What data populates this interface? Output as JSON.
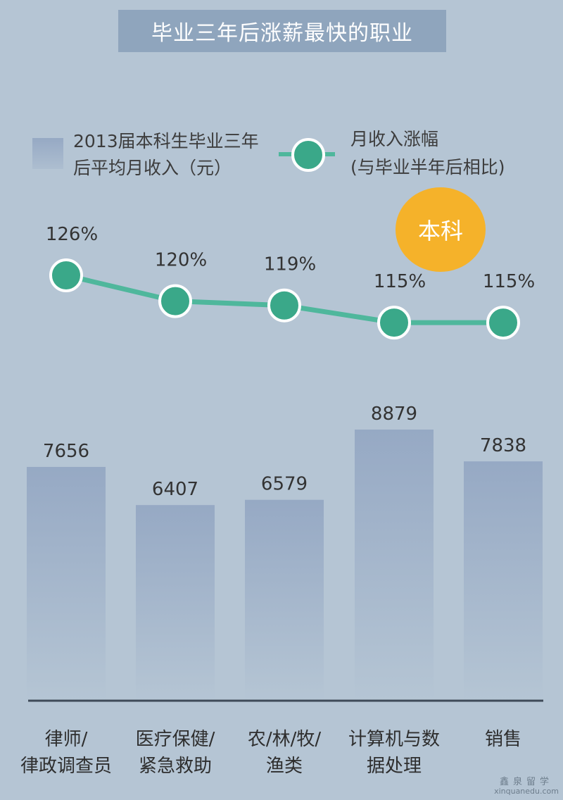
{
  "title": "毕业三年后涨薪最快的职业",
  "legend": {
    "bar_label": "2013届本科生毕业三年后平均月收入（元）",
    "line_label_1": "月收入涨幅",
    "line_label_2": "(与毕业半年后相比)"
  },
  "badge": "本科",
  "colors": {
    "background": "#b5c5d4",
    "title_box": "#8fa5bd",
    "bar_top": "#96a9c4",
    "bar_bottom": "#b5c5d4",
    "line": "#4fb79c",
    "dot": "#3aa889",
    "badge": "#f5b22a"
  },
  "chart_data": {
    "type": "bar",
    "categories": [
      "律师/\n律政调查员",
      "医疗保健/\n紧急救助",
      "农/林/牧/\n渔类",
      "计算机与数\n据处理",
      "销售"
    ],
    "series": [
      {
        "type": "bar",
        "values": [
          7656,
          6407,
          6579,
          8879,
          7838
        ]
      },
      {
        "type": "line",
        "values": [
          126,
          120,
          119,
          115,
          115
        ],
        "value_labels": [
          "126%",
          "120%",
          "119%",
          "115%",
          "115%"
        ]
      }
    ]
  },
  "footer": {
    "brand": "鑫泉留学",
    "url": "xinquanedu.com"
  }
}
